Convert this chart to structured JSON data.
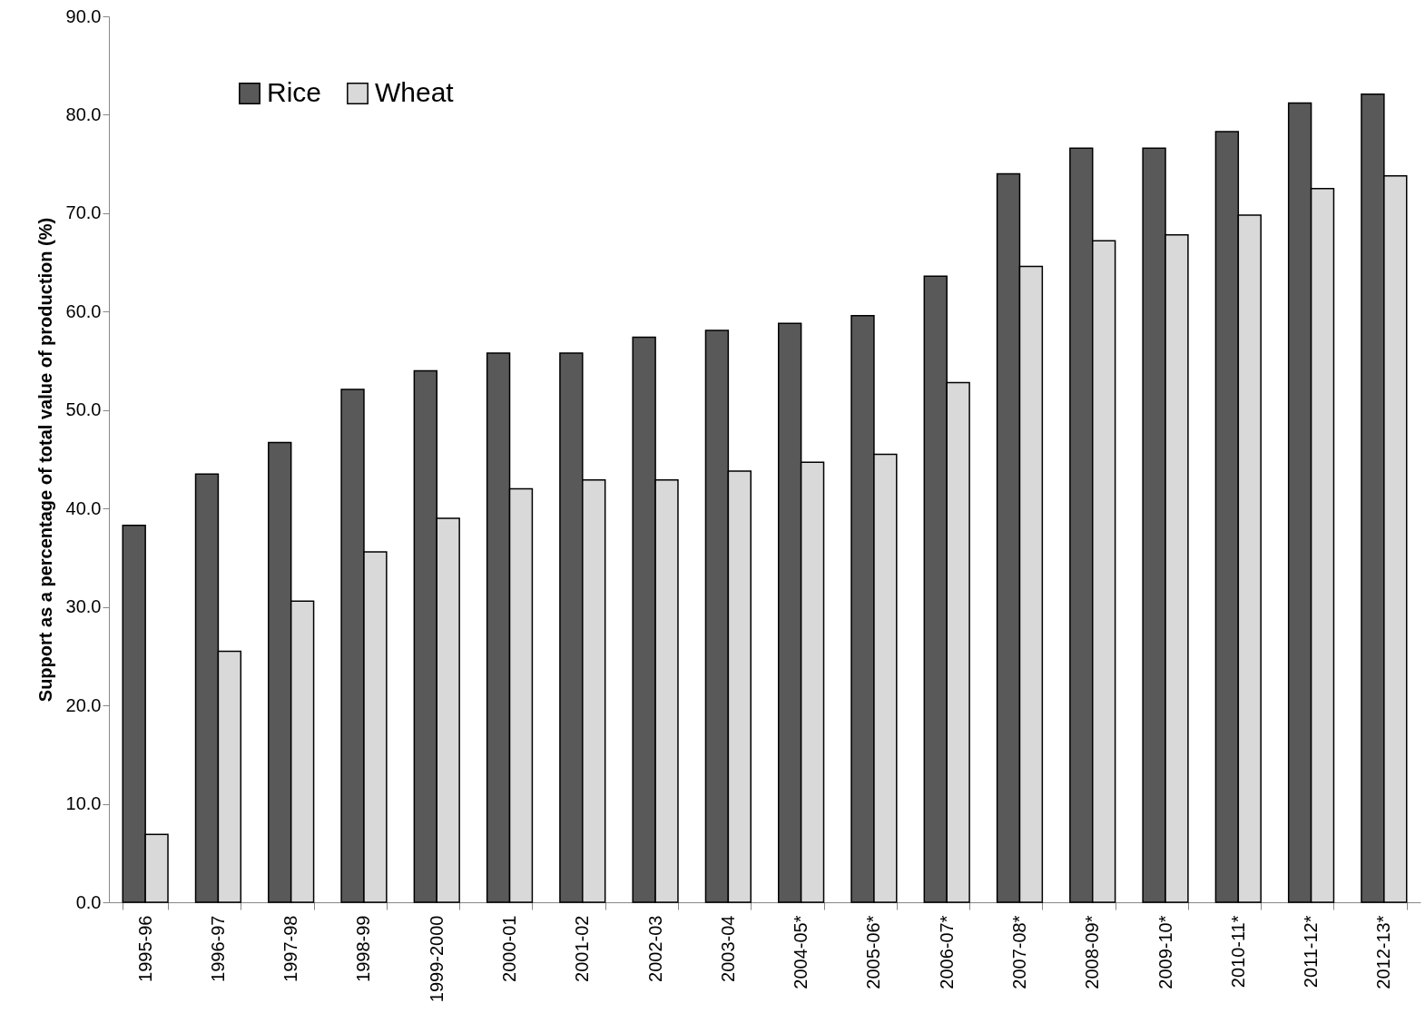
{
  "chart_data": {
    "type": "bar",
    "ylabel": "Support as a percentage of total value of production (%)",
    "categories": [
      "1995-96",
      "1996-97",
      "1997-98",
      "1998-99",
      "1999-2000",
      "2000-01",
      "2001-02",
      "2002-03",
      "2003-04",
      "2004-05*",
      "2005-06*",
      "2006-07*",
      "2007-08*",
      "2008-09*",
      "2009-10*",
      "2010-11*",
      "2011-12*",
      "2012-13*"
    ],
    "series": [
      {
        "name": "Rice",
        "color": "#595959",
        "values": [
          38.3,
          43.5,
          46.7,
          52.1,
          54.0,
          55.8,
          55.8,
          57.4,
          58.1,
          58.8,
          59.6,
          63.6,
          74.0,
          76.6,
          76.6,
          78.3,
          81.2,
          82.1
        ]
      },
      {
        "name": "Wheat",
        "color": "#d9d9d9",
        "values": [
          6.9,
          25.5,
          30.6,
          35.6,
          39.0,
          42.0,
          42.9,
          42.9,
          43.8,
          44.7,
          45.5,
          52.8,
          64.6,
          67.2,
          67.8,
          69.8,
          72.5,
          73.8
        ]
      }
    ],
    "ylim": [
      0,
      90
    ],
    "yticks": [
      {
        "value": 0,
        "label": "0.0"
      },
      {
        "value": 10,
        "label": "10.0"
      },
      {
        "value": 20,
        "label": "20.0"
      },
      {
        "value": 30,
        "label": "30.0"
      },
      {
        "value": 40,
        "label": "40.0"
      },
      {
        "value": 50,
        "label": "50.0"
      },
      {
        "value": 60,
        "label": "60.0"
      },
      {
        "value": 70,
        "label": "70.0"
      },
      {
        "value": 80,
        "label": "80.0"
      },
      {
        "value": 90,
        "label": "90.0"
      }
    ],
    "grid": false,
    "legend": "top left"
  }
}
